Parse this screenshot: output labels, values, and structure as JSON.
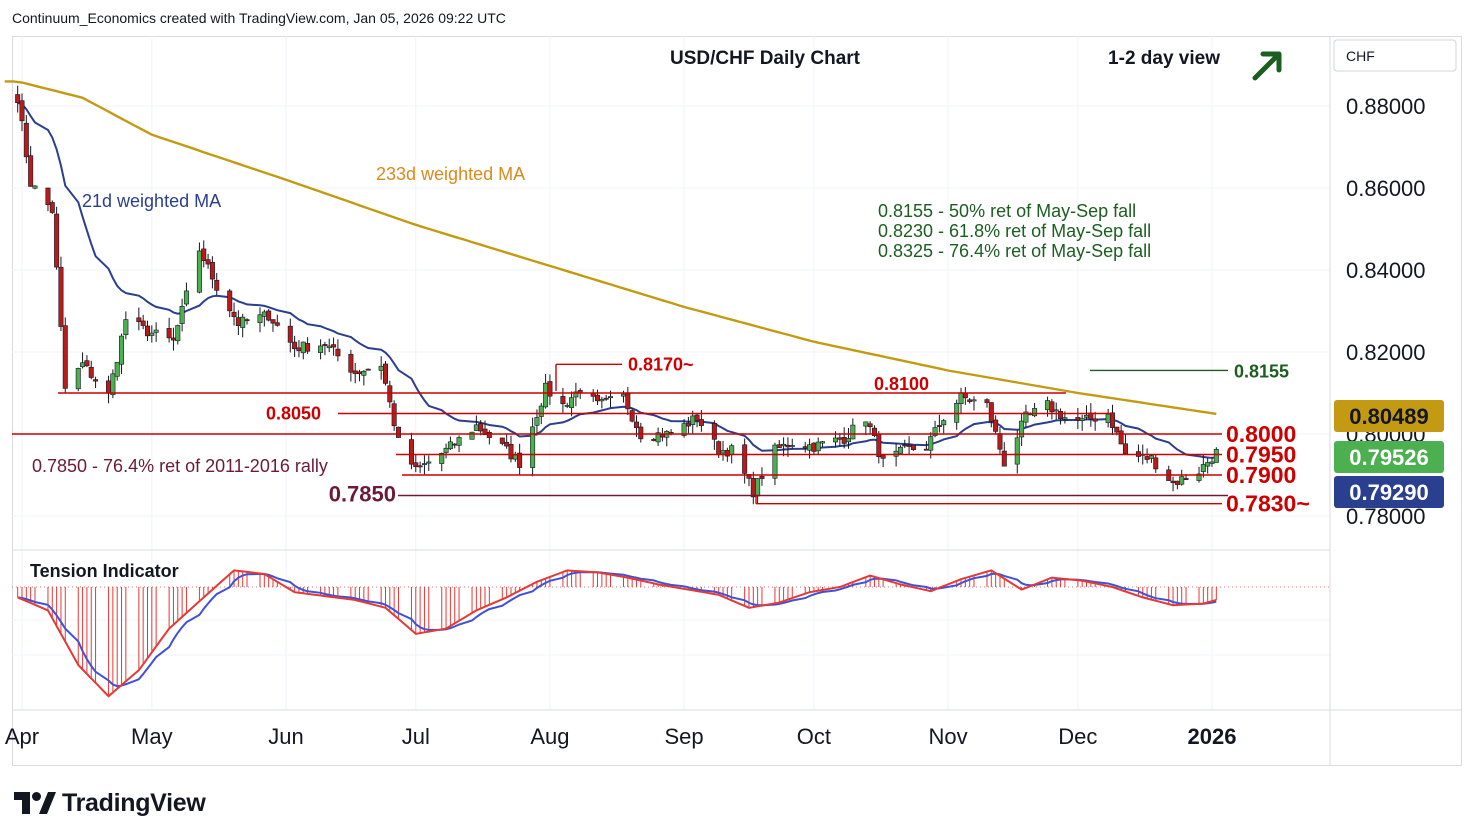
{
  "header": "Continuum_Economics created with TradingView.com, Jan 05, 2026 09:22 UTC",
  "chart_title": "USD/CHF Daily Chart",
  "view_label": "1-2 day view",
  "currency_label": "CHF",
  "brand": "TradingView",
  "colors": {
    "up": "#4caf50",
    "down": "#b71c1c",
    "ma21": "#2a3f8f",
    "ma233": "#c49a12",
    "level": "#cc0000",
    "green_text": "#1b5e20",
    "tension_red": "#e53935",
    "tension_blue": "#3f51d9"
  },
  "annotations": {
    "ma233": "233d weighted MA",
    "ma21": "21d weighted MA",
    "fib1": "0.8155 - 50% ret of May-Sep fall",
    "fib2": "0.8230 - 61.8% ret of May-Sep fall",
    "fib3": "0.8325 - 76.4% ret of May-Sep fall",
    "long_term": "0.7850 - 76.4% ret of 2011-2016 rally",
    "tension": "Tension Indicator"
  },
  "chart_data": {
    "type": "candlestick",
    "title": "USD/CHF Daily Chart",
    "y_range": [
      0.776,
      0.887
    ],
    "y_ticks": [
      "0.88000",
      "0.86000",
      "0.84000",
      "0.82000",
      "0.80000",
      "0.78000"
    ],
    "x_ticks": [
      "Apr",
      "May",
      "Jun",
      "Jul",
      "Aug",
      "Sep",
      "Oct",
      "Nov",
      "Dec",
      "2026"
    ],
    "price_tags": {
      "ma233": "0.80489",
      "last": "0.79526",
      "ma21": "0.79290"
    },
    "levels": [
      {
        "label": "0.8170~",
        "value": 0.817
      },
      {
        "label": "0.8155",
        "value": 0.8155
      },
      {
        "label": "0.8100",
        "value": 0.81
      },
      {
        "label": "0.8050",
        "value": 0.805
      },
      {
        "label": "0.8000",
        "value": 0.8
      },
      {
        "label": "0.7950",
        "value": 0.795
      },
      {
        "label": "0.7900",
        "value": 0.79
      },
      {
        "label": "0.7850",
        "value": 0.785
      },
      {
        "label": "0.7830~",
        "value": 0.783
      }
    ],
    "close_anchors": [
      [
        "2025-03-31",
        0.8822
      ],
      [
        "2025-04-03",
        0.8612
      ],
      [
        "2025-04-08",
        0.8545
      ],
      [
        "2025-04-11",
        0.811
      ],
      [
        "2025-04-15",
        0.817
      ],
      [
        "2025-04-21",
        0.8095
      ],
      [
        "2025-04-25",
        0.828
      ],
      [
        "2025-04-30",
        0.825
      ],
      [
        "2025-05-06",
        0.8225
      ],
      [
        "2025-05-12",
        0.845
      ],
      [
        "2025-05-16",
        0.836
      ],
      [
        "2025-05-21",
        0.827
      ],
      [
        "2025-05-28",
        0.829
      ],
      [
        "2025-06-03",
        0.821
      ],
      [
        "2025-06-10",
        0.822
      ],
      [
        "2025-06-17",
        0.815
      ],
      [
        "2025-06-23",
        0.817
      ],
      [
        "2025-06-27",
        0.798
      ],
      [
        "2025-07-01",
        0.791
      ],
      [
        "2025-07-08",
        0.796
      ],
      [
        "2025-07-15",
        0.802
      ],
      [
        "2025-07-22",
        0.796
      ],
      [
        "2025-07-25",
        0.793
      ],
      [
        "2025-07-31",
        0.811
      ],
      [
        "2025-08-04",
        0.807
      ],
      [
        "2025-08-08",
        0.811
      ],
      [
        "2025-08-12",
        0.807
      ],
      [
        "2025-08-18",
        0.809
      ],
      [
        "2025-08-22",
        0.8
      ],
      [
        "2025-08-29",
        0.8
      ],
      [
        "2025-09-04",
        0.804
      ],
      [
        "2025-09-09",
        0.796
      ],
      [
        "2025-09-12",
        0.796
      ],
      [
        "2025-09-17",
        0.786
      ],
      [
        "2025-09-22",
        0.796
      ],
      [
        "2025-09-26",
        0.798
      ],
      [
        "2025-10-01",
        0.797
      ],
      [
        "2025-10-08",
        0.799
      ],
      [
        "2025-10-13",
        0.804
      ],
      [
        "2025-10-17",
        0.793
      ],
      [
        "2025-10-22",
        0.796
      ],
      [
        "2025-10-27",
        0.797
      ],
      [
        "2025-10-31",
        0.804
      ],
      [
        "2025-11-04",
        0.809
      ],
      [
        "2025-11-10",
        0.807
      ],
      [
        "2025-11-14",
        0.793
      ],
      [
        "2025-11-19",
        0.804
      ],
      [
        "2025-11-24",
        0.807
      ],
      [
        "2025-11-28",
        0.804
      ],
      [
        "2025-12-02",
        0.803
      ],
      [
        "2025-12-08",
        0.805
      ],
      [
        "2025-12-12",
        0.795
      ],
      [
        "2025-12-18",
        0.794
      ],
      [
        "2025-12-23",
        0.788
      ],
      [
        "2025-12-29",
        0.791
      ],
      [
        "2026-01-02",
        0.7955
      ]
    ],
    "ma233_anchors": [
      [
        "2025-03-31",
        0.886
      ],
      [
        "2025-04-15",
        0.882
      ],
      [
        "2025-05-01",
        0.873
      ],
      [
        "2025-06-01",
        0.862
      ],
      [
        "2025-07-01",
        0.851
      ],
      [
        "2025-08-01",
        0.841
      ],
      [
        "2025-09-01",
        0.831
      ],
      [
        "2025-10-01",
        0.8225
      ],
      [
        "2025-11-01",
        0.8155
      ],
      [
        "2025-12-01",
        0.81
      ],
      [
        "2026-01-02",
        0.8049
      ]
    ],
    "tension_anchors": [
      [
        "2025-03-31",
        -0.2
      ],
      [
        "2025-04-07",
        -0.45
      ],
      [
        "2025-04-14",
        -1.5
      ],
      [
        "2025-04-21",
        -2.1
      ],
      [
        "2025-04-28",
        -1.6
      ],
      [
        "2025-05-05",
        -0.8
      ],
      [
        "2025-05-13",
        -0.2
      ],
      [
        "2025-05-20",
        0.32
      ],
      [
        "2025-05-27",
        0.25
      ],
      [
        "2025-06-03",
        -0.1
      ],
      [
        "2025-06-17",
        -0.25
      ],
      [
        "2025-06-24",
        -0.4
      ],
      [
        "2025-07-01",
        -0.9
      ],
      [
        "2025-07-08",
        -0.8
      ],
      [
        "2025-07-15",
        -0.45
      ],
      [
        "2025-07-22",
        -0.2
      ],
      [
        "2025-07-29",
        0.1
      ],
      [
        "2025-08-05",
        0.32
      ],
      [
        "2025-08-12",
        0.28
      ],
      [
        "2025-08-19",
        0.18
      ],
      [
        "2025-08-26",
        0.05
      ],
      [
        "2025-09-02",
        -0.05
      ],
      [
        "2025-09-09",
        -0.15
      ],
      [
        "2025-09-16",
        -0.4
      ],
      [
        "2025-09-23",
        -0.3
      ],
      [
        "2025-09-30",
        -0.1
      ],
      [
        "2025-10-07",
        0.0
      ],
      [
        "2025-10-14",
        0.22
      ],
      [
        "2025-10-21",
        0.05
      ],
      [
        "2025-10-28",
        -0.08
      ],
      [
        "2025-11-04",
        0.15
      ],
      [
        "2025-11-11",
        0.32
      ],
      [
        "2025-11-18",
        -0.05
      ],
      [
        "2025-11-25",
        0.18
      ],
      [
        "2025-12-02",
        0.12
      ],
      [
        "2025-12-09",
        0.0
      ],
      [
        "2025-12-16",
        -0.2
      ],
      [
        "2025-12-23",
        -0.35
      ],
      [
        "2025-12-30",
        -0.32
      ],
      [
        "2026-01-02",
        -0.25
      ]
    ]
  }
}
